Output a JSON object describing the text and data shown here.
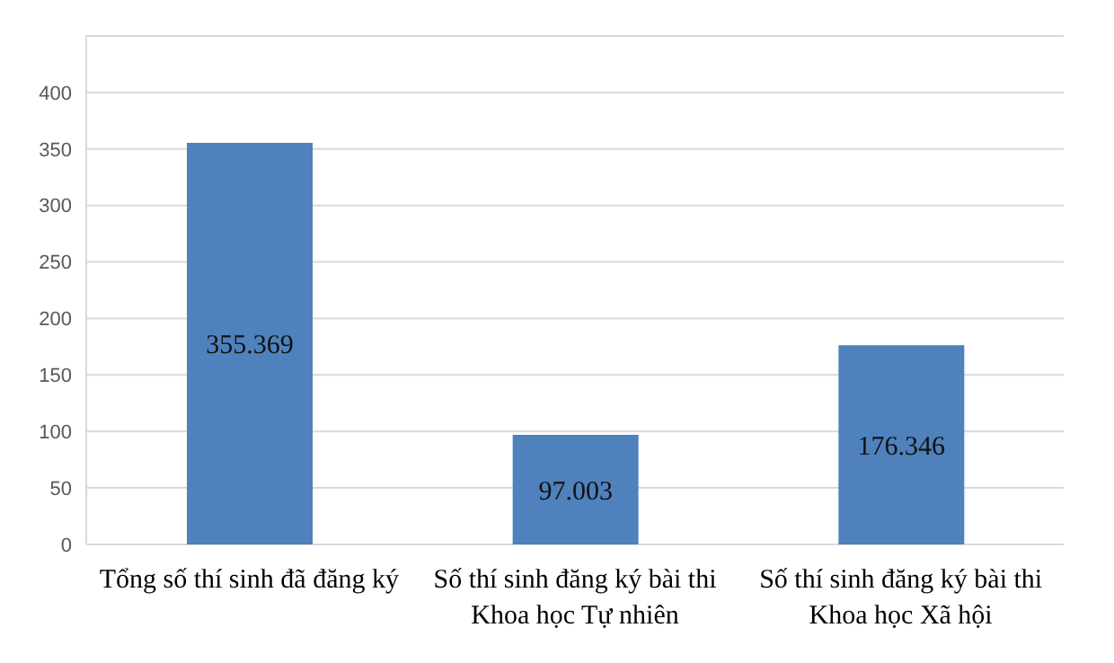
{
  "chart_data": {
    "type": "bar",
    "categories": [
      "Tổng số thí sinh đã đăng ký",
      "Số thí sinh đăng ký bài thi Khoa học Tự nhiên",
      "Số thí sinh đăng ký bài thi Khoa học Xã hội"
    ],
    "values": [
      355.369,
      97.003,
      176.346
    ],
    "color": "#4f81bd",
    "ylim": [
      0,
      450
    ],
    "yticks": [
      0,
      50,
      100,
      150,
      200,
      250,
      300,
      350,
      400,
      {
        "value": 450,
        "label": null
      }
    ],
    "grid": "y",
    "data_labels": true
  }
}
